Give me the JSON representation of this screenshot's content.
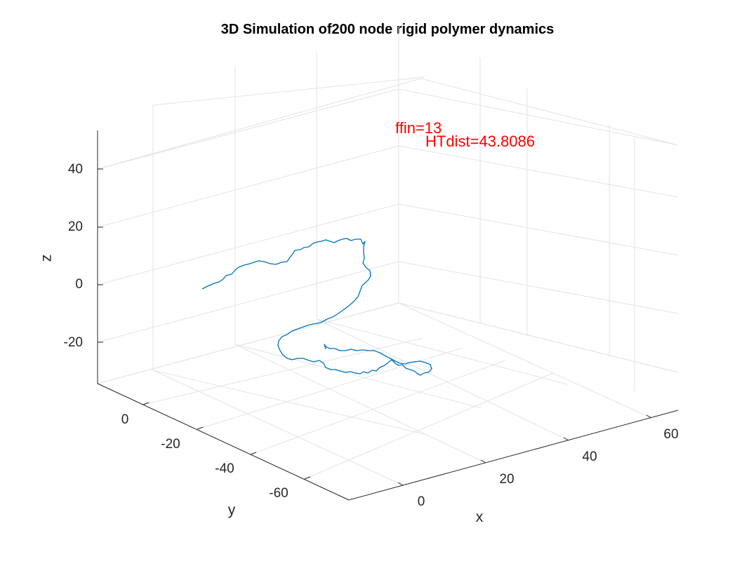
{
  "chart_data": {
    "type": "line",
    "title": "3D Simulation of200 node rigid polymer dynamics",
    "xlabel": "x",
    "ylabel": "y",
    "zlabel": "z",
    "x_ticks": [
      "0",
      "20",
      "40",
      "60"
    ],
    "y_ticks": [
      "0",
      "-20",
      "-40",
      "-60"
    ],
    "z_ticks": [
      "40",
      "20",
      "0",
      "-20"
    ],
    "grid": true,
    "series_color": "#0072BD",
    "annotation_color": "#FF0000",
    "annotations": [
      {
        "text": "ffin=13"
      },
      {
        "text": "HTdist=43.8086"
      }
    ]
  }
}
